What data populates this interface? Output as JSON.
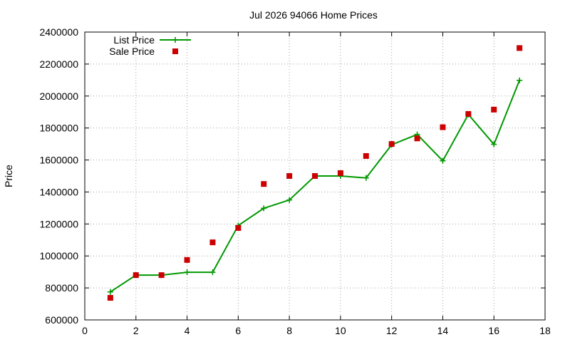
{
  "chart_data": {
    "type": "line",
    "title": "Jul 2026 94066 Home Prices",
    "xlabel": "",
    "ylabel": "Price",
    "xlim": [
      0,
      18
    ],
    "ylim": [
      600000,
      2400000
    ],
    "x_ticks": [
      "0",
      "2",
      "4",
      "6",
      "8",
      "10",
      "12",
      "14",
      "16",
      "18"
    ],
    "y_ticks": [
      "600000",
      "800000",
      "1000000",
      "1200000",
      "1400000",
      "1600000",
      "1800000",
      "2000000",
      "2200000",
      "2400000"
    ],
    "grid": true,
    "legend_position": "top-left",
    "series": [
      {
        "name": "List Price",
        "style": "line+cross",
        "color": "#009900",
        "x": [
          1,
          2,
          3,
          4,
          5,
          6,
          7,
          8,
          9,
          10,
          11,
          12,
          13,
          14,
          15,
          16,
          17
        ],
        "values": [
          775000,
          880000,
          880000,
          898000,
          898000,
          1190000,
          1298000,
          1350000,
          1500000,
          1500000,
          1488000,
          1695000,
          1760000,
          1595000,
          1885000,
          1698000,
          2098000
        ]
      },
      {
        "name": "Sale Price",
        "style": "square",
        "color": "#cc0000",
        "x": [
          1,
          2,
          3,
          4,
          5,
          6,
          7,
          8,
          9,
          10,
          11,
          12,
          13,
          14,
          15,
          16,
          17
        ],
        "values": [
          738000,
          880000,
          880000,
          975000,
          1085000,
          1175000,
          1450000,
          1500000,
          1500000,
          1518000,
          1625000,
          1700000,
          1735000,
          1805000,
          1888000,
          1915000,
          2300000
        ]
      }
    ]
  }
}
